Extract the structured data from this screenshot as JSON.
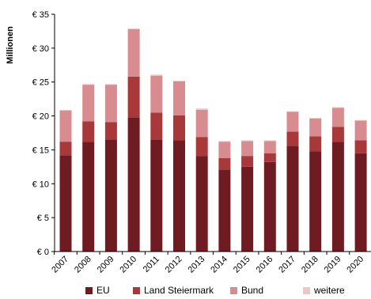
{
  "chart_data": {
    "type": "bar",
    "stacked": true,
    "ylabel": "Millionen",
    "xlabel": "",
    "ylim": [
      0,
      35
    ],
    "yticks": [
      0,
      5,
      10,
      15,
      20,
      25,
      30,
      35
    ],
    "ytick_labels": [
      "€ 0",
      "€ 5",
      "€ 10",
      "€ 15",
      "€ 20",
      "€ 25",
      "€ 30",
      "€ 35"
    ],
    "grid": false,
    "legend_position": "bottom",
    "categories": [
      "2007",
      "2008",
      "2009",
      "2010",
      "2011",
      "2012",
      "2013",
      "2014",
      "2015",
      "2016",
      "2017",
      "2018",
      "2019",
      "2020"
    ],
    "series": [
      {
        "name": "EU",
        "color": "#6e1c22",
        "values": [
          14.2,
          16.2,
          16.5,
          19.8,
          16.5,
          16.4,
          14.1,
          12.1,
          12.5,
          13.2,
          15.6,
          14.8,
          16.2,
          14.5
        ]
      },
      {
        "name": "Land Steiermark",
        "color": "#a9383b",
        "values": [
          2.0,
          3.0,
          2.6,
          6.0,
          4.0,
          3.7,
          2.8,
          1.7,
          1.6,
          1.3,
          2.1,
          2.2,
          2.2,
          1.9
        ]
      },
      {
        "name": "Bund",
        "color": "#d98c8f",
        "values": [
          4.6,
          5.4,
          5.5,
          7.0,
          5.4,
          5.0,
          4.0,
          2.4,
          2.2,
          1.8,
          2.9,
          2.6,
          2.8,
          2.9
        ]
      },
      {
        "name": "weitere",
        "color": "#f0c5c6",
        "values": [
          0.1,
          0.1,
          0.1,
          0.1,
          0.2,
          0.1,
          0.2,
          0.1,
          0.1,
          0.1,
          0.1,
          0.1,
          0.1,
          0.1
        ]
      }
    ]
  }
}
